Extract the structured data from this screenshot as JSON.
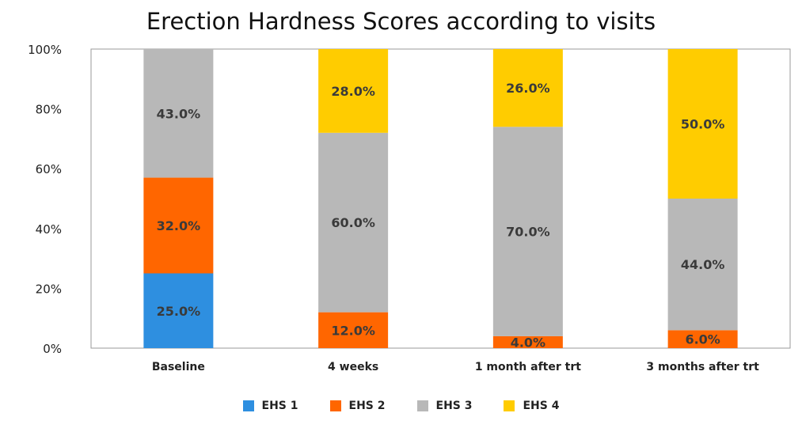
{
  "chart_data": {
    "type": "bar",
    "stacked": true,
    "title": "Erection Hardness Scores according to visits",
    "categories": [
      "Baseline",
      "4 weeks",
      "1 month after trt",
      "3 months after trt"
    ],
    "series": [
      {
        "name": "EHS 1",
        "color": "#2e8fe0",
        "values": [
          25.0,
          0,
          0,
          0
        ],
        "labels": [
          "25.0%",
          "",
          "",
          ""
        ]
      },
      {
        "name": "EHS 2",
        "color": "#ff6600",
        "values": [
          32.0,
          12.0,
          4.0,
          6.0
        ],
        "labels": [
          "32.0%",
          "12.0%",
          "4.0%",
          "6.0%"
        ]
      },
      {
        "name": "EHS 3",
        "color": "#b8b8b8",
        "values": [
          43.0,
          60.0,
          70.0,
          44.0
        ],
        "labels": [
          "43.0%",
          "60.0%",
          "70.0%",
          "44.0%"
        ]
      },
      {
        "name": "EHS 4",
        "color": "#ffcc00",
        "values": [
          0,
          28.0,
          26.0,
          50.0
        ],
        "labels": [
          "",
          "28.0%",
          "26.0%",
          "50.0%"
        ]
      }
    ],
    "ylim": [
      0,
      100
    ],
    "yticks": [
      "0%",
      "20%",
      "40%",
      "60%",
      "80%",
      "100%"
    ],
    "ytick_values": [
      0,
      20,
      40,
      60,
      80,
      100
    ],
    "legend_position": "bottom",
    "grid": false
  }
}
